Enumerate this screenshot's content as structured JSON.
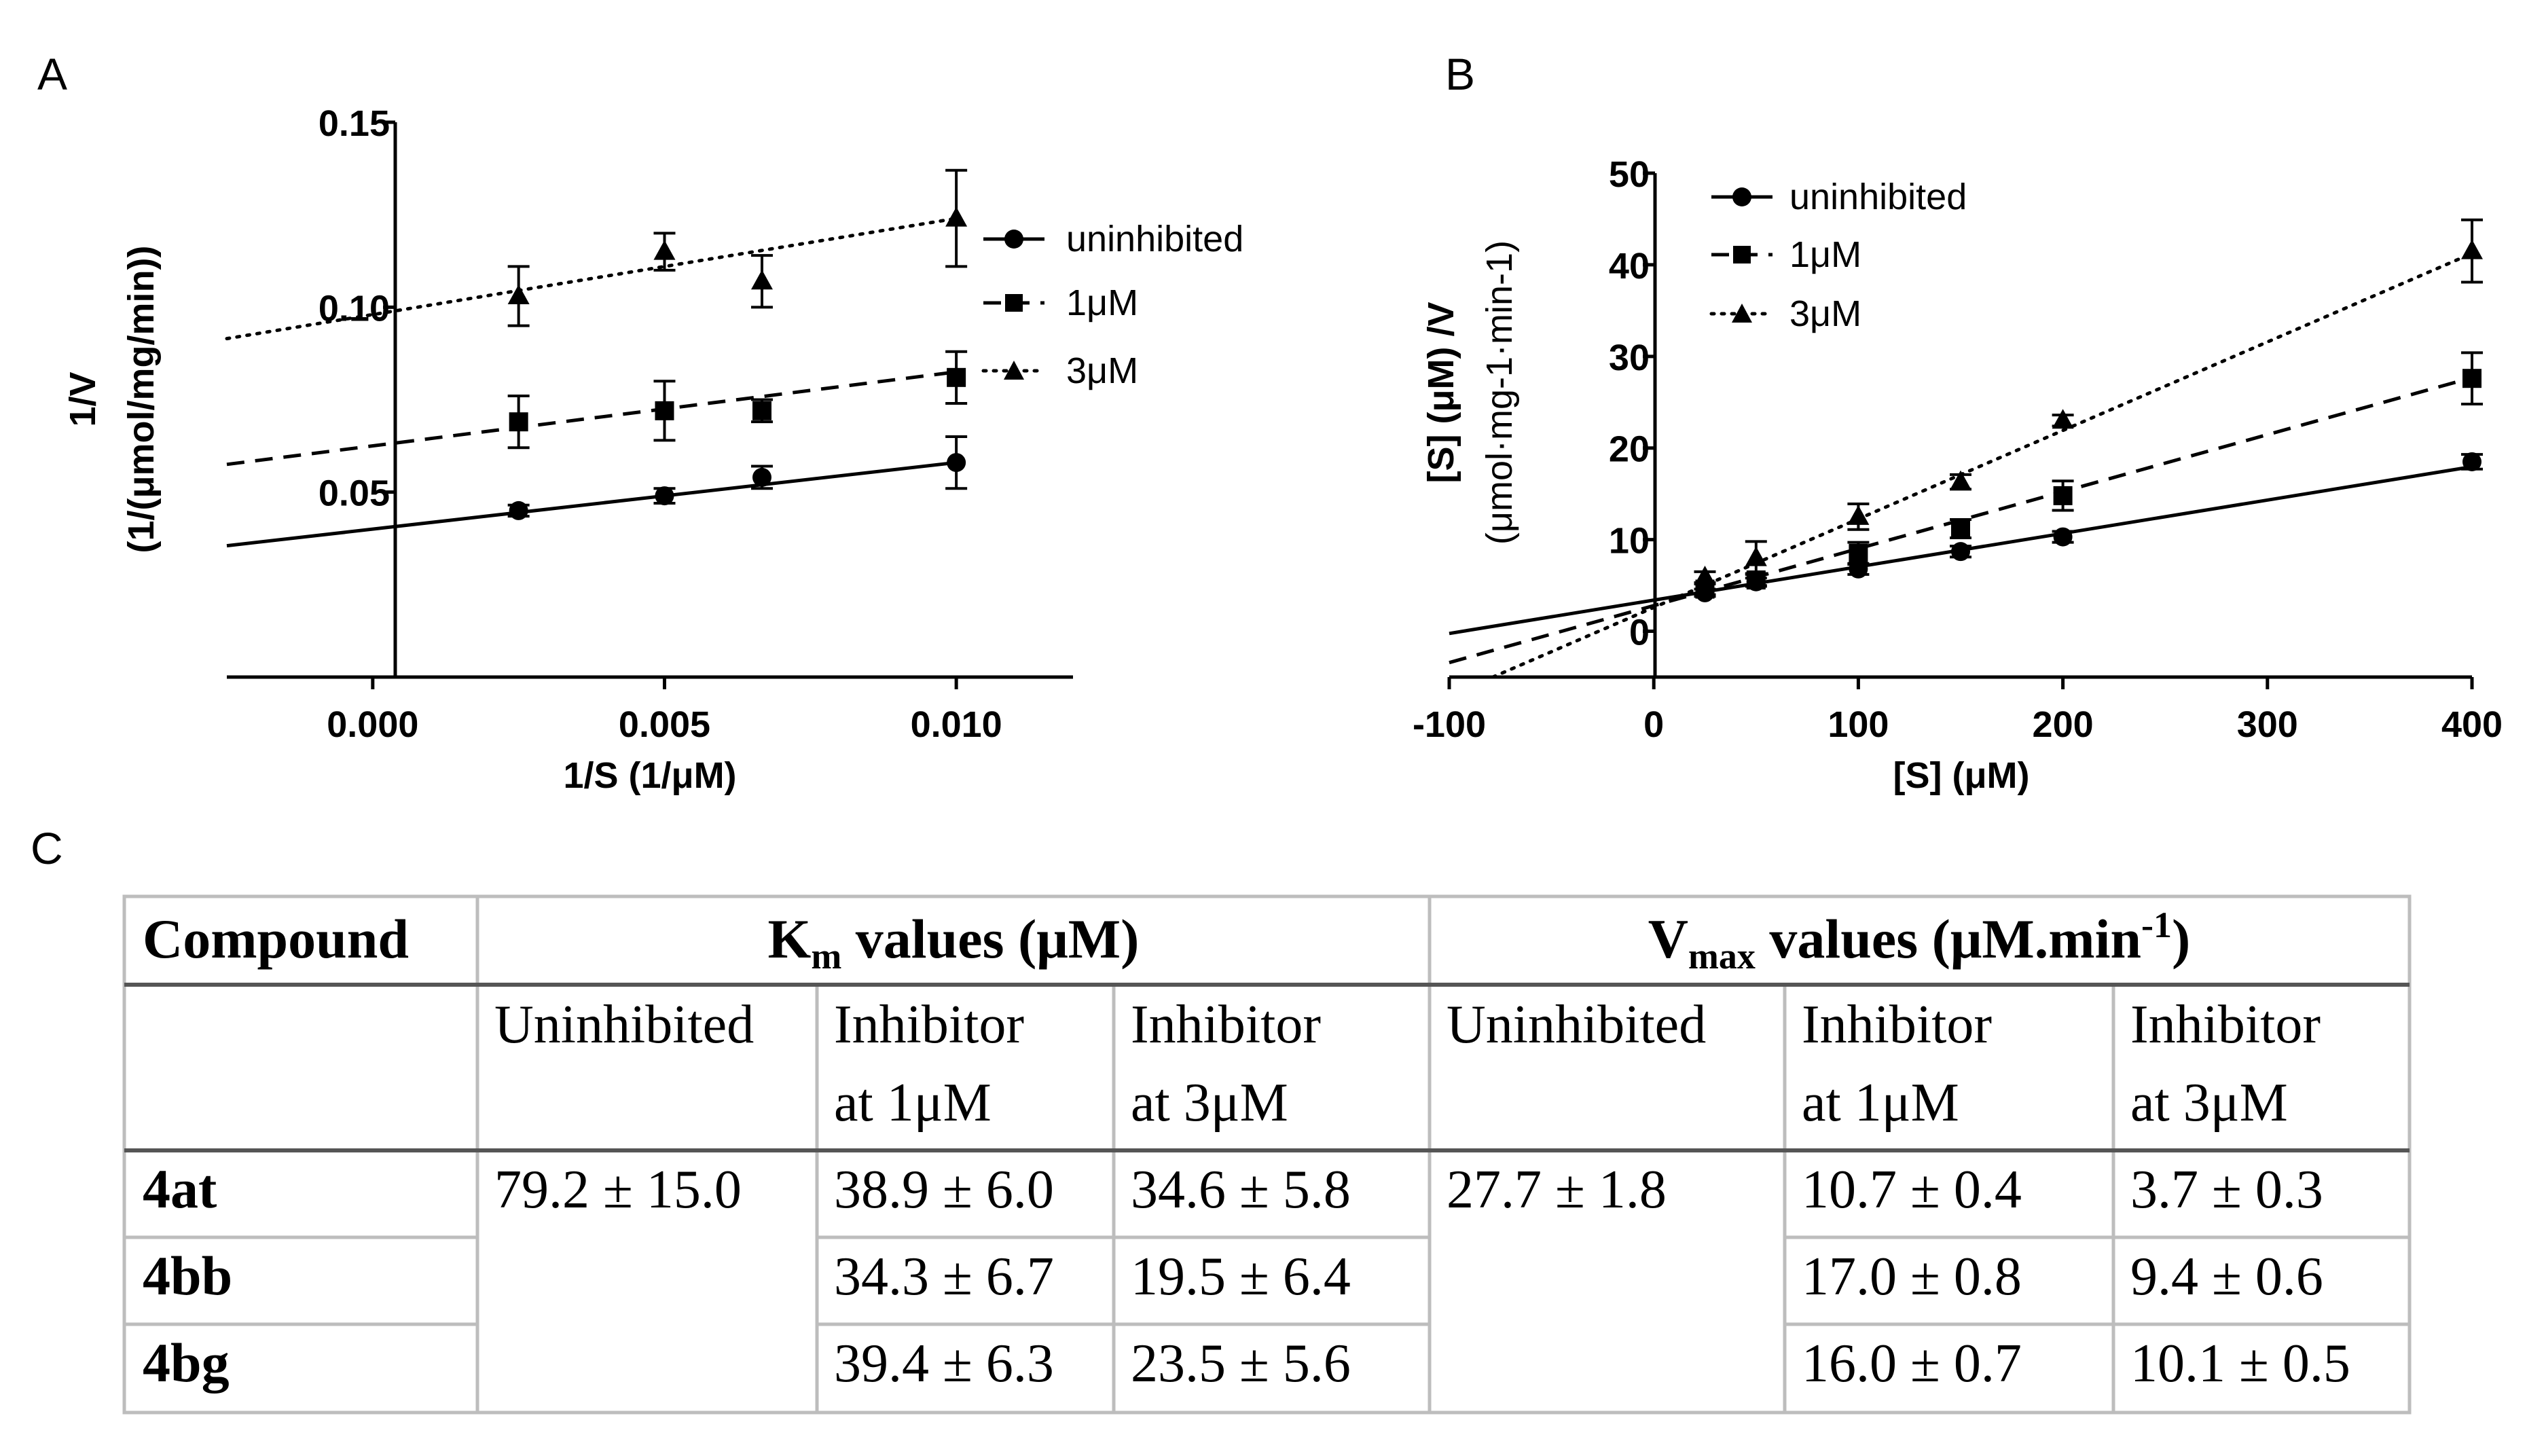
{
  "panel_labels": {
    "a": "A",
    "b": "B",
    "c": "C"
  },
  "chart_data": [
    {
      "id": "A",
      "type": "scatter",
      "title": "",
      "xlabel": "1/S (1/μM)",
      "ylabel_line1": "1/V",
      "ylabel_line2": "(1/(μmol/mg/min))",
      "xlim": [
        -0.0025,
        0.012
      ],
      "ylim": [
        0.0,
        0.15
      ],
      "xticks": [
        0.0,
        0.005,
        0.01
      ],
      "xtick_labels": [
        "0.000",
        "0.005",
        "0.010"
      ],
      "yticks": [
        0.05,
        0.1,
        0.15
      ],
      "ytick_labels": [
        "0.05",
        "0.10",
        "0.15"
      ],
      "legend_position": "right",
      "series": [
        {
          "name": "uninhibited",
          "marker": "circle",
          "line": "solid",
          "x": [
            0.0025,
            0.005,
            0.00667,
            0.01
          ],
          "y": [
            0.045,
            0.049,
            0.054,
            0.058
          ],
          "err": [
            0.0015,
            0.002,
            0.003,
            0.007
          ],
          "fit": {
            "slope": 1.8,
            "intercept": 0.04
          }
        },
        {
          "name": "1μM",
          "marker": "square",
          "line": "dashed",
          "x": [
            0.0025,
            0.005,
            0.00667,
            0.01
          ],
          "y": [
            0.069,
            0.072,
            0.072,
            0.081
          ],
          "err": [
            0.007,
            0.008,
            0.003,
            0.007
          ],
          "fit": {
            "slope": 2.0,
            "intercept": 0.0625
          }
        },
        {
          "name": "3μM",
          "marker": "triangle",
          "line": "dotted",
          "x": [
            0.0025,
            0.005,
            0.00667,
            0.01
          ],
          "y": [
            0.103,
            0.115,
            0.107,
            0.124
          ],
          "err": [
            0.008,
            0.005,
            0.007,
            0.013
          ],
          "fit": {
            "slope": 2.6,
            "intercept": 0.098
          }
        }
      ]
    },
    {
      "id": "B",
      "type": "scatter",
      "title": "",
      "xlabel": "[S] (μM)",
      "ylabel_line1": "[S] (μM) /V",
      "ylabel_line2": "(μmol·mg-1·min-1)",
      "xlim": [
        -100,
        400
      ],
      "ylim": [
        -5,
        50
      ],
      "xticks": [
        -100,
        0,
        100,
        200,
        300,
        400
      ],
      "xtick_labels": [
        "-100",
        "0",
        "100",
        "200",
        "300",
        "400"
      ],
      "yticks": [
        0,
        10,
        20,
        30,
        40,
        50
      ],
      "ytick_labels": [
        "0",
        "10",
        "20",
        "30",
        "40",
        "50"
      ],
      "legend_position": "top-left",
      "series": [
        {
          "name": "uninhibited",
          "marker": "circle",
          "line": "solid",
          "x": [
            25,
            50,
            100,
            150,
            200,
            400
          ],
          "y": [
            4.2,
            5.4,
            6.8,
            8.7,
            10.3,
            18.5
          ],
          "err": [
            0.4,
            0.4,
            0.6,
            0.6,
            0.6,
            0.8
          ],
          "fit": {
            "slope": 0.0364,
            "intercept": 3.4
          }
        },
        {
          "name": "1μM",
          "marker": "square",
          "line": "dashed",
          "x": [
            25,
            50,
            100,
            150,
            200,
            400
          ],
          "y": [
            4.6,
            5.6,
            8.5,
            11.2,
            14.8,
            27.6
          ],
          "err": [
            0.6,
            0.7,
            1.2,
            1.0,
            1.6,
            2.8
          ],
          "fit": {
            "slope": 0.0622,
            "intercept": 2.8
          }
        },
        {
          "name": "3μM",
          "marker": "triangle",
          "line": "dotted",
          "x": [
            25,
            50,
            100,
            150,
            200,
            400
          ],
          "y": [
            5.9,
            8.0,
            12.5,
            16.3,
            23.0,
            41.5
          ],
          "err": [
            0.6,
            1.8,
            1.4,
            0.8,
            0.6,
            3.4
          ],
          "fit": {
            "slope": 0.0966,
            "intercept": 2.6
          }
        }
      ]
    }
  ],
  "table": {
    "header": {
      "compound": "Compound",
      "km_main": "K",
      "km_sub": "m",
      "km_rest": " values (μM)",
      "vmax_main": "V",
      "vmax_sub": "max",
      "vmax_rest": " values (μM.min",
      "vmax_sup": "-1",
      "vmax_close": ")"
    },
    "subheader": {
      "uninhibited": "Uninhibited",
      "inhib1_line1": "Inhibitor",
      "inhib1_line2": "at 1μM",
      "inhib3_line1": "Inhibitor",
      "inhib3_line2": "at 3μM"
    },
    "km_uninhibited": "79.2 ± 15.0",
    "vmax_uninhibited": "27.7 ± 1.8",
    "rows": [
      {
        "compound": "4at",
        "km_1": "38.9 ± 6.0",
        "km_3": "34.6 ± 5.8",
        "vmax_1": "10.7 ± 0.4",
        "vmax_3": "3.7 ± 0.3"
      },
      {
        "compound": "4bb",
        "km_1": "34.3 ± 6.7",
        "km_3": "19.5 ± 6.4",
        "vmax_1": "17.0 ± 0.8",
        "vmax_3": "9.4 ± 0.6"
      },
      {
        "compound": "4bg",
        "km_1": "39.4 ± 6.3",
        "km_3": "23.5 ± 5.6",
        "vmax_1": "16.0 ± 0.7",
        "vmax_3": "10.1 ± 0.5"
      }
    ]
  }
}
